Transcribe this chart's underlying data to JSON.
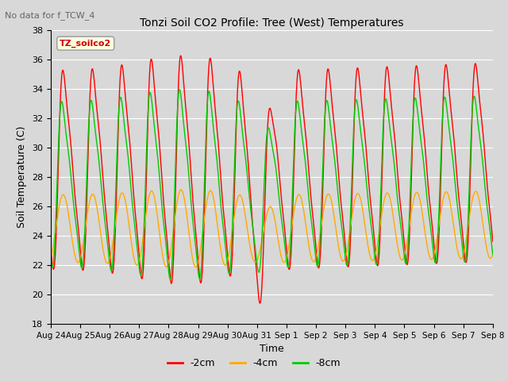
{
  "title": "Tonzi Soil CO2 Profile: Tree (West) Temperatures",
  "subtitle": "No data for f_TCW_4",
  "xlabel": "Time",
  "ylabel": "Soil Temperature (C)",
  "ylim": [
    18,
    38
  ],
  "legend_title": "TZ_soilco2",
  "series_labels": [
    "-2cm",
    "-4cm",
    "-8cm"
  ],
  "series_colors": [
    "#ff0000",
    "#ffaa00",
    "#00cc00"
  ],
  "xtick_labels": [
    "Aug 24",
    "Aug 25",
    "Aug 26",
    "Aug 27",
    "Aug 28",
    "Aug 29",
    "Aug 30",
    "Aug 31",
    "Sep 1",
    "Sep 2",
    "Sep 3",
    "Sep 4",
    "Sep 5",
    "Sep 6",
    "Sep 7",
    "Sep 8"
  ],
  "background_color": "#d8d8d8",
  "plot_bg_color": "#d8d8d8",
  "n_days": 15,
  "n_points": 1500
}
